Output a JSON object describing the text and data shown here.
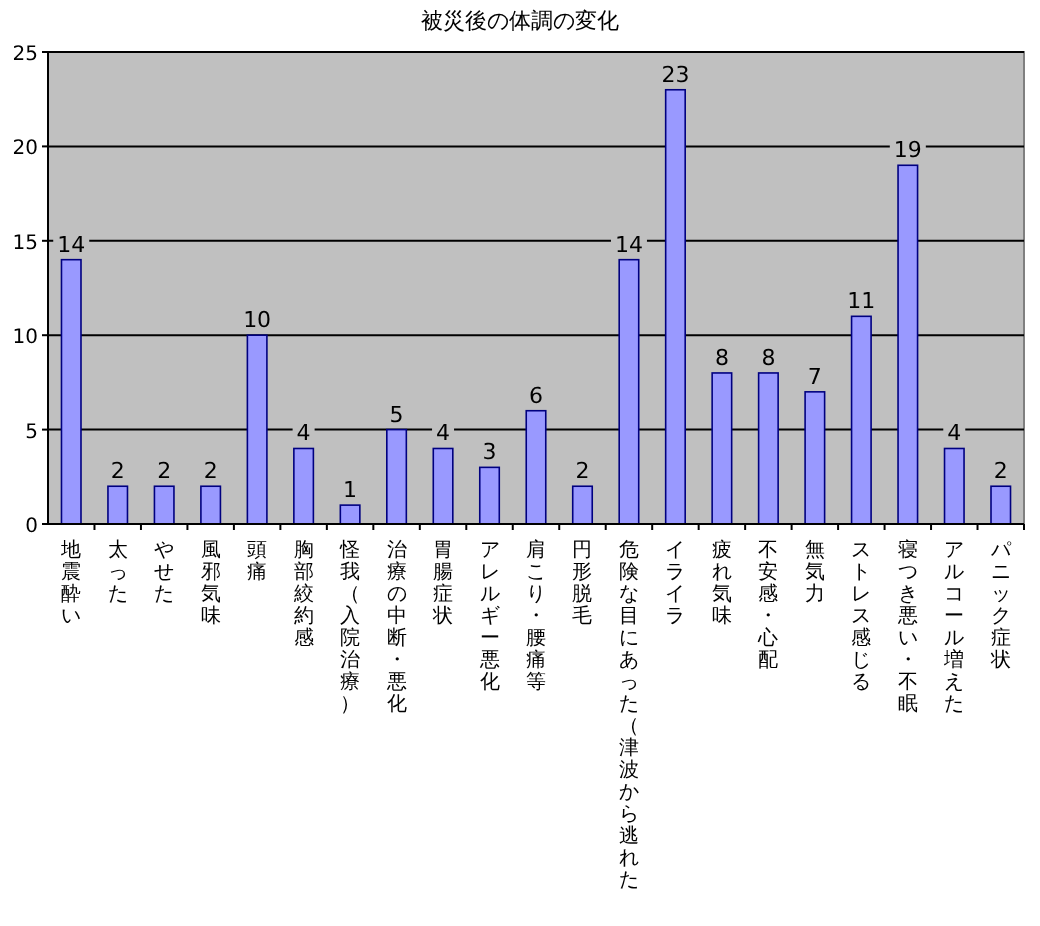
{
  "chart_data": {
    "type": "bar",
    "title": "被災後の体調の変化",
    "categories": [
      "地震酔い",
      "太った",
      "やせた",
      "風邪気味",
      "頭痛",
      "胸部絞約感",
      "怪我（入院治療）",
      "治療の中断・悪化",
      "胃腸症状",
      "アレルギー悪化",
      "肩こり・腰痛等",
      "円形脱毛",
      "危険な目にあった（津波から逃れた",
      "イライラ",
      "疲れ気味",
      "不安感・心配",
      "無気力",
      "ストレス感じる",
      "寝つき悪い・不眠",
      "アルコール増えた",
      "パニック症状"
    ],
    "values": [
      14,
      2,
      2,
      2,
      10,
      4,
      1,
      5,
      4,
      3,
      6,
      2,
      14,
      23,
      8,
      8,
      7,
      11,
      19,
      4,
      2
    ],
    "color": "#9999ff",
    "ylim": [
      0,
      25
    ],
    "yticks": [
      0,
      5,
      10,
      15,
      20,
      25
    ],
    "grid": "y",
    "data_labels": true
  }
}
